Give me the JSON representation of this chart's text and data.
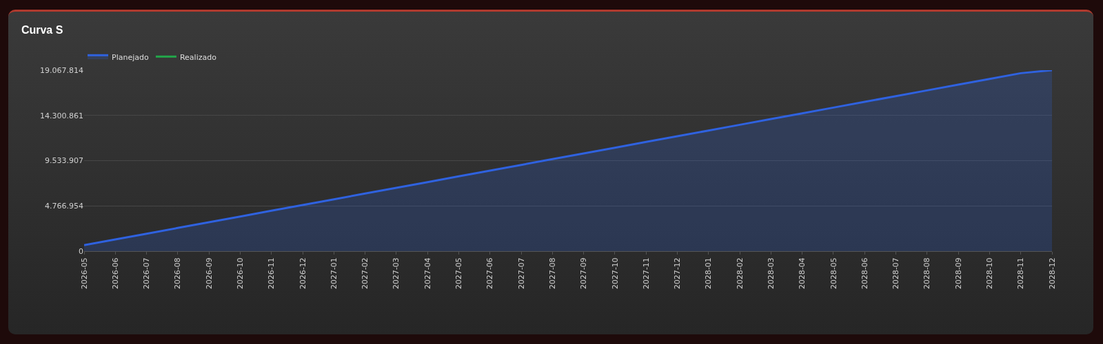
{
  "chart_data": {
    "type": "area",
    "title": "Curva S",
    "categories": [
      "2026-05",
      "2026-06",
      "2026-07",
      "2026-08",
      "2026-09",
      "2026-10",
      "2026-11",
      "2026-12",
      "2027-01",
      "2027-02",
      "2027-03",
      "2027-04",
      "2027-05",
      "2027-06",
      "2027-07",
      "2027-08",
      "2027-09",
      "2027-10",
      "2027-11",
      "2027-12",
      "2028-01",
      "2028-02",
      "2028-03",
      "2028-04",
      "2028-05",
      "2028-06",
      "2028-07",
      "2028-08",
      "2028-09",
      "2028-10",
      "2028-11",
      "2028-12"
    ],
    "series": [
      {
        "name": "Planejado",
        "color": "#2f62e0",
        "values": [
          630000,
          1234000,
          1838000,
          2442000,
          3046000,
          3650000,
          4254000,
          4858000,
          5462000,
          6066000,
          6670000,
          7274000,
          7878000,
          8482000,
          9086000,
          9690000,
          10294000,
          10898000,
          11502000,
          12106000,
          12710000,
          13314000,
          13918000,
          14522000,
          15126000,
          15730000,
          16334000,
          16938000,
          17542000,
          18146000,
          18750000,
          19067814
        ]
      },
      {
        "name": "Realizado",
        "type": "line",
        "color": "#22a84a",
        "values": [
          null,
          null,
          null,
          null,
          null,
          null,
          null,
          null,
          null,
          null,
          null,
          null,
          null,
          null,
          null,
          null,
          null,
          null,
          null,
          null,
          null,
          null,
          null,
          null,
          null,
          null,
          null,
          null,
          null,
          null,
          null,
          null
        ]
      }
    ],
    "ylim": [
      0,
      19067814
    ],
    "yticks": [
      {
        "value": 0,
        "label": "0"
      },
      {
        "value": 4766954,
        "label": "4.766.954"
      },
      {
        "value": 9533907,
        "label": "9.533.907"
      },
      {
        "value": 14300861,
        "label": "14.300.861"
      },
      {
        "value": 19067814,
        "label": "19.067.814"
      }
    ],
    "grid": "y",
    "legend": "top left",
    "marker": "none",
    "line_style": "solid"
  }
}
